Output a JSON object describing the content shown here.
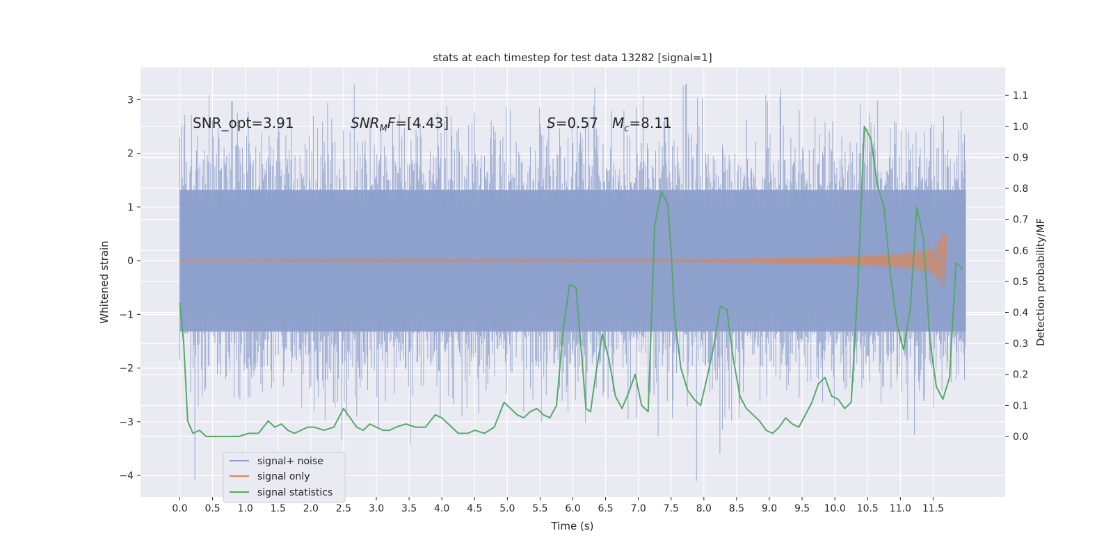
{
  "chart_data": {
    "type": "line",
    "title": "stats at each timestep for test data 13282 [signal=1]",
    "xlabel": "Time (s)",
    "ylabel": "Whitened strain",
    "y2label": "Detection probability/MF",
    "xlim": [
      -0.6,
      12.6
    ],
    "ylim": [
      -4.4,
      3.6
    ],
    "y2lim": [
      -0.195,
      1.19
    ],
    "x_ticks": [
      0.0,
      0.5,
      1.0,
      1.5,
      2.0,
      2.5,
      3.0,
      3.5,
      4.0,
      4.5,
      5.0,
      5.5,
      6.0,
      6.5,
      7.0,
      7.5,
      8.0,
      8.5,
      9.0,
      9.5,
      10.0,
      10.5,
      11.0,
      11.5
    ],
    "x_tick_labels": [
      "0.0",
      "0.5",
      "1.0",
      "1.5",
      "2.0",
      "2.5",
      "3.0",
      "3.5",
      "4.0",
      "4.5",
      "5.0",
      "5.5",
      "6.0",
      "6.5",
      "7.0",
      "7.5",
      "8.0",
      "8.5",
      "9.0",
      "9.5",
      "10.0",
      "10.5",
      "11.0",
      "11.5"
    ],
    "y_ticks": [
      3,
      2,
      1,
      0,
      -1,
      -2,
      -3,
      -4
    ],
    "y_tick_labels": [
      "3",
      "2",
      "1",
      "0",
      "−1",
      "−2",
      "−3",
      "−4"
    ],
    "y2_ticks": [
      1.1,
      1.0,
      0.9,
      0.8,
      0.7,
      0.6,
      0.5,
      0.4,
      0.3,
      0.2,
      0.1,
      0.0
    ],
    "y2_tick_labels": [
      "1.1",
      "1.0",
      "0.9",
      "0.8",
      "0.7",
      "0.6",
      "0.5",
      "0.4",
      "0.3",
      "0.2",
      "0.1",
      "0.0"
    ],
    "grid": true,
    "legend_position": "lower-left",
    "annotations": [
      {
        "prefix": "SNR_opt=3.91"
      },
      {
        "italic": "SNR",
        "sub": "M",
        "italic2": "F",
        "rest": "=[4.43]"
      },
      {
        "italic": "S",
        "rest": "=0.57",
        "italic2": "M",
        "sub2": "c",
        "rest2": "=8.11"
      }
    ],
    "series": [
      {
        "name": "signal+ noise",
        "color": "#8da0cb",
        "axis": "left",
        "style": "noise band",
        "x_range": [
          0.0,
          12.0
        ],
        "approx_envelope": [
          -2.0,
          2.0
        ],
        "approx_peak_max": 3.3,
        "approx_peak_min": -4.1
      },
      {
        "name": "signal only",
        "color": "#dd8452",
        "axis": "left",
        "style": "chirp",
        "x_range": [
          0.0,
          11.7
        ],
        "amplitude_points": [
          [
            0.0,
            0.01
          ],
          [
            7.5,
            0.02
          ],
          [
            9.0,
            0.05
          ],
          [
            10.0,
            0.08
          ],
          [
            11.0,
            0.14
          ],
          [
            11.5,
            0.25
          ],
          [
            11.65,
            0.55
          ]
        ]
      },
      {
        "name": "signal statistics",
        "color": "#55a868",
        "axis": "right",
        "x": [
          0.0,
          0.06,
          0.12,
          0.2,
          0.3,
          0.4,
          0.5,
          0.6,
          0.75,
          0.9,
          1.05,
          1.2,
          1.35,
          1.45,
          1.55,
          1.65,
          1.75,
          1.85,
          1.95,
          2.05,
          2.2,
          2.35,
          2.5,
          2.6,
          2.7,
          2.8,
          2.9,
          3.0,
          3.1,
          3.2,
          3.3,
          3.45,
          3.6,
          3.75,
          3.9,
          4.0,
          4.1,
          4.25,
          4.4,
          4.5,
          4.65,
          4.8,
          4.95,
          5.05,
          5.15,
          5.25,
          5.35,
          5.45,
          5.55,
          5.65,
          5.75,
          5.85,
          5.95,
          6.05,
          6.12,
          6.2,
          6.27,
          6.35,
          6.45,
          6.55,
          6.65,
          6.75,
          6.85,
          6.95,
          7.05,
          7.15,
          7.25,
          7.35,
          7.45,
          7.5,
          7.55,
          7.65,
          7.75,
          7.85,
          7.95,
          8.05,
          8.15,
          8.25,
          8.35,
          8.45,
          8.55,
          8.65,
          8.75,
          8.85,
          8.95,
          9.05,
          9.15,
          9.25,
          9.35,
          9.45,
          9.55,
          9.65,
          9.75,
          9.85,
          9.95,
          10.05,
          10.15,
          10.25,
          10.35,
          10.45,
          10.55,
          10.65,
          10.75,
          10.85,
          10.95,
          11.05,
          11.15,
          11.25,
          11.35,
          11.45,
          11.55,
          11.65,
          11.75,
          11.85,
          11.95
        ],
        "values": [
          0.43,
          0.3,
          0.05,
          0.01,
          0.02,
          0.0,
          0.0,
          0.0,
          0.0,
          0.0,
          0.01,
          0.01,
          0.05,
          0.03,
          0.04,
          0.02,
          0.01,
          0.02,
          0.03,
          0.03,
          0.02,
          0.03,
          0.09,
          0.06,
          0.03,
          0.02,
          0.04,
          0.03,
          0.02,
          0.02,
          0.03,
          0.04,
          0.03,
          0.03,
          0.07,
          0.06,
          0.04,
          0.01,
          0.01,
          0.02,
          0.01,
          0.03,
          0.11,
          0.09,
          0.07,
          0.06,
          0.08,
          0.09,
          0.07,
          0.06,
          0.1,
          0.34,
          0.49,
          0.48,
          0.3,
          0.09,
          0.08,
          0.2,
          0.33,
          0.25,
          0.13,
          0.09,
          0.14,
          0.2,
          0.1,
          0.08,
          0.68,
          0.79,
          0.75,
          0.6,
          0.39,
          0.22,
          0.15,
          0.12,
          0.1,
          0.19,
          0.29,
          0.42,
          0.41,
          0.25,
          0.13,
          0.09,
          0.07,
          0.05,
          0.02,
          0.01,
          0.03,
          0.06,
          0.04,
          0.03,
          0.07,
          0.11,
          0.17,
          0.19,
          0.13,
          0.12,
          0.09,
          0.11,
          0.48,
          1.0,
          0.96,
          0.81,
          0.74,
          0.52,
          0.36,
          0.28,
          0.41,
          0.74,
          0.64,
          0.31,
          0.16,
          0.12,
          0.19,
          0.56,
          0.54
        ]
      }
    ]
  }
}
